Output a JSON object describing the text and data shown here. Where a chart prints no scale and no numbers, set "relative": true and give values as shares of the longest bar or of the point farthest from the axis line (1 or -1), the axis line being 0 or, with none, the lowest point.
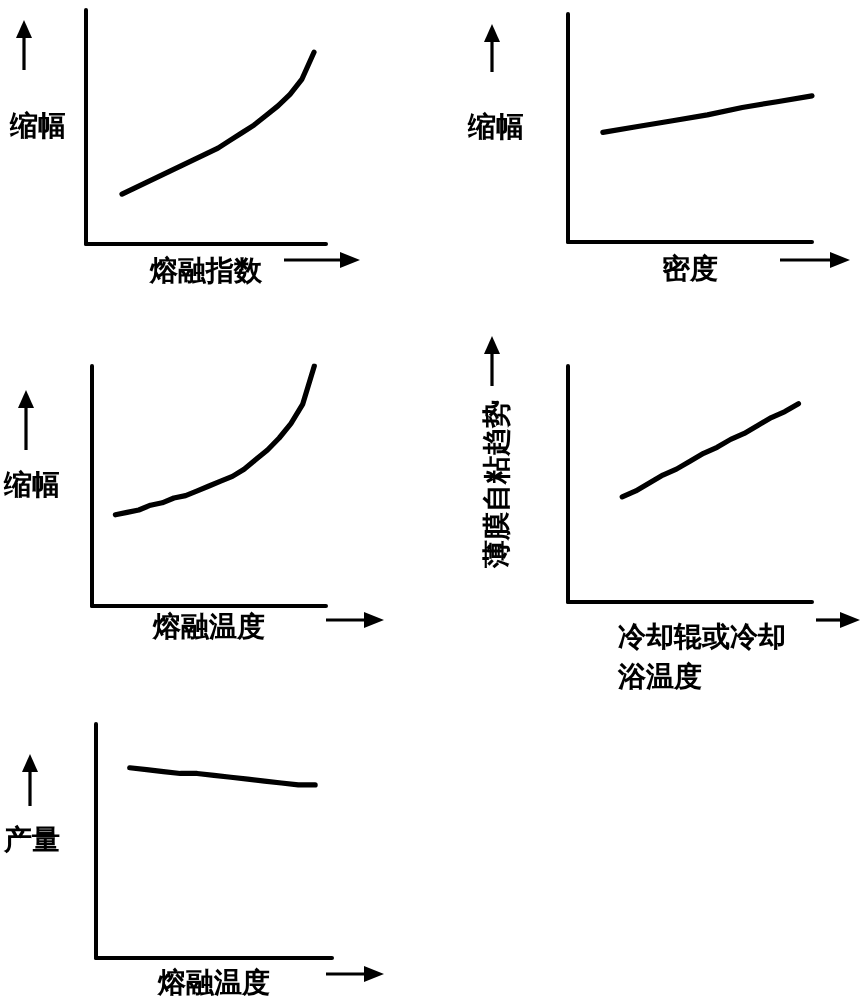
{
  "chart_data": [
    {
      "type": "line",
      "relative": true,
      "ylabel": "缩幅",
      "xlabel": "熔融指数",
      "color": "#000000",
      "marker": "none",
      "tick_labels": false,
      "categories": [
        null,
        null,
        null,
        null,
        null,
        null,
        null,
        null,
        null,
        null,
        null,
        null,
        null,
        null,
        null,
        null,
        null,
        null,
        null,
        null,
        null
      ],
      "values": [
        null,
        null,
        null,
        0.26,
        0.29,
        0.32,
        0.35,
        0.38,
        0.41,
        0.44,
        0.47,
        0.5,
        0.54,
        0.58,
        0.62,
        0.67,
        0.72,
        0.78,
        0.86,
        1.0,
        null
      ]
    },
    {
      "type": "line",
      "relative": true,
      "ylabel": "缩幅",
      "xlabel": "密度",
      "color": "#000000",
      "marker": "none",
      "tick_labels": false,
      "categories": [
        null,
        null,
        null,
        null,
        null,
        null,
        null,
        null
      ],
      "values": [
        null,
        0.75,
        0.79,
        0.83,
        0.87,
        0.92,
        0.96,
        1.0
      ]
    },
    {
      "type": "line",
      "relative": true,
      "ylabel": "缩幅",
      "xlabel": "熔融温度",
      "color": "#000000",
      "marker": "none",
      "tick_labels": false,
      "categories": [
        null,
        null,
        null,
        null,
        null,
        null,
        null,
        null,
        null,
        null,
        null,
        null,
        null,
        null,
        null,
        null,
        null,
        null,
        null,
        null,
        null
      ],
      "values": [
        null,
        null,
        0.38,
        0.39,
        0.4,
        0.42,
        0.43,
        0.45,
        0.46,
        0.48,
        0.5,
        0.52,
        0.54,
        0.57,
        0.61,
        0.65,
        0.7,
        0.76,
        0.84,
        1.0,
        null
      ]
    },
    {
      "type": "line",
      "relative": true,
      "ylabel": "薄膜自粘趋势",
      "xlabel": "冷却辊或冷却浴温度",
      "color": "#000000",
      "marker": "none",
      "tick_labels": false,
      "categories": [
        null,
        null,
        null,
        null,
        null,
        null,
        null,
        null,
        null,
        null,
        null,
        null,
        null,
        null,
        null,
        null,
        null,
        null,
        null
      ],
      "values": [
        null,
        null,
        null,
        null,
        0.53,
        0.56,
        0.6,
        0.64,
        0.67,
        0.71,
        0.75,
        0.78,
        0.82,
        0.85,
        0.89,
        0.93,
        0.96,
        1.0,
        null
      ]
    },
    {
      "type": "line",
      "relative": true,
      "ylabel": "产量",
      "xlabel": "熔融温度",
      "color": "#000000",
      "marker": "none",
      "tick_labels": false,
      "categories": [
        null,
        null,
        null,
        null,
        null,
        null,
        null,
        null,
        null,
        null,
        null,
        null,
        null,
        null,
        null
      ],
      "values": [
        null,
        null,
        1.0,
        0.99,
        0.98,
        0.97,
        0.97,
        0.96,
        0.95,
        0.94,
        0.93,
        0.92,
        0.91,
        0.91,
        null
      ]
    }
  ]
}
